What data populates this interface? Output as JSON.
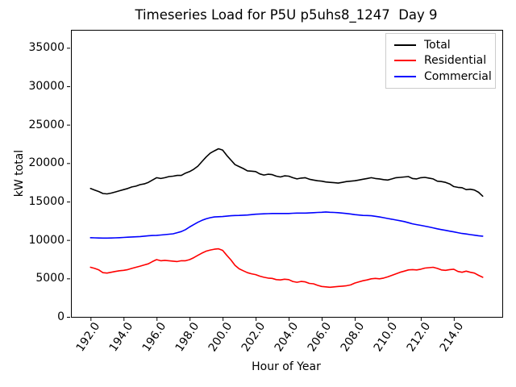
{
  "chart_data": {
    "type": "line",
    "title": "Timeseries Load for P5U p5uhs8_1247  Day 9",
    "xlabel": "Hour of Year",
    "ylabel": "kW total",
    "grid": false,
    "legend_position": "upper right",
    "legend_border_color": "#cccccc",
    "xlim": [
      190.8125,
      216.9375
    ],
    "ylim": [
      0,
      37340
    ],
    "x_ticks": [
      192,
      194,
      196,
      198,
      200,
      202,
      204,
      206,
      208,
      210,
      212,
      214
    ],
    "x_tick_labels": [
      "192.0",
      "194.0",
      "196.0",
      "198.0",
      "200.0",
      "202.0",
      "204.0",
      "206.0",
      "208.0",
      "210.0",
      "212.0",
      "214.0"
    ],
    "y_ticks": [
      0,
      5000,
      10000,
      15000,
      20000,
      25000,
      30000,
      35000
    ],
    "y_tick_labels": [
      "0",
      "5000",
      "10000",
      "15000",
      "20000",
      "25000",
      "30000",
      "35000"
    ],
    "x": [
      192,
      192.25,
      192.5,
      192.75,
      193,
      193.25,
      193.5,
      193.75,
      194,
      194.25,
      194.5,
      194.75,
      195,
      195.25,
      195.5,
      195.75,
      196,
      196.25,
      196.5,
      196.75,
      197,
      197.25,
      197.5,
      197.75,
      198,
      198.25,
      198.5,
      198.75,
      199,
      199.25,
      199.5,
      199.75,
      200,
      200.25,
      200.5,
      200.75,
      201,
      201.25,
      201.5,
      201.75,
      202,
      202.25,
      202.5,
      202.75,
      203,
      203.25,
      203.5,
      203.75,
      204,
      204.25,
      204.5,
      204.75,
      205,
      205.25,
      205.5,
      205.75,
      206,
      206.25,
      206.5,
      206.75,
      207,
      207.25,
      207.5,
      207.75,
      208,
      208.25,
      208.5,
      208.75,
      209,
      209.25,
      209.5,
      209.75,
      210,
      210.25,
      210.5,
      210.75,
      211,
      211.25,
      211.5,
      211.75,
      212,
      212.25,
      212.5,
      212.75,
      213,
      213.25,
      213.5,
      213.75,
      214,
      214.25,
      214.5,
      214.75,
      215,
      215.25,
      215.5,
      215.75
    ],
    "series": [
      {
        "name": "Total",
        "color": "#000000",
        "values": [
          16700,
          16500,
          16300,
          16050,
          16000,
          16100,
          16250,
          16400,
          16550,
          16700,
          16900,
          17000,
          17200,
          17300,
          17500,
          17800,
          18100,
          18000,
          18100,
          18250,
          18300,
          18400,
          18400,
          18700,
          18900,
          19200,
          19600,
          20200,
          20800,
          21300,
          21600,
          21870,
          21700,
          21000,
          20400,
          19800,
          19550,
          19300,
          19000,
          18950,
          18900,
          18600,
          18450,
          18550,
          18500,
          18300,
          18200,
          18350,
          18300,
          18100,
          17950,
          18050,
          18100,
          17900,
          17800,
          17700,
          17650,
          17550,
          17500,
          17450,
          17400,
          17500,
          17600,
          17650,
          17700,
          17800,
          17900,
          18000,
          18100,
          18000,
          17950,
          17850,
          17800,
          17950,
          18100,
          18150,
          18200,
          18250,
          18000,
          17950,
          18100,
          18150,
          18050,
          17950,
          17650,
          17600,
          17500,
          17300,
          16950,
          16850,
          16800,
          16550,
          16600,
          16500,
          16200,
          15700
        ]
      },
      {
        "name": "Residential",
        "color": "#ff0000",
        "values": [
          6450,
          6300,
          6100,
          5750,
          5700,
          5800,
          5900,
          6000,
          6050,
          6150,
          6300,
          6450,
          6600,
          6750,
          6900,
          7200,
          7450,
          7300,
          7350,
          7300,
          7250,
          7200,
          7300,
          7300,
          7450,
          7700,
          8000,
          8300,
          8550,
          8700,
          8800,
          8850,
          8650,
          8000,
          7400,
          6700,
          6250,
          6000,
          5750,
          5600,
          5500,
          5300,
          5150,
          5050,
          5000,
          4850,
          4800,
          4900,
          4850,
          4600,
          4500,
          4600,
          4550,
          4350,
          4300,
          4100,
          3950,
          3900,
          3850,
          3900,
          3950,
          4000,
          4050,
          4150,
          4400,
          4550,
          4700,
          4800,
          4950,
          5000,
          4950,
          5050,
          5200,
          5400,
          5600,
          5800,
          5950,
          6100,
          6150,
          6100,
          6200,
          6350,
          6400,
          6450,
          6300,
          6100,
          6050,
          6150,
          6200,
          5900,
          5800,
          5950,
          5800,
          5700,
          5400,
          5150
        ]
      },
      {
        "name": "Commercial",
        "color": "#0000ff",
        "values": [
          10300,
          10280,
          10260,
          10250,
          10250,
          10260,
          10280,
          10300,
          10330,
          10360,
          10390,
          10420,
          10450,
          10500,
          10550,
          10580,
          10600,
          10650,
          10700,
          10750,
          10800,
          10950,
          11100,
          11350,
          11700,
          12000,
          12300,
          12550,
          12750,
          12900,
          13000,
          13030,
          13050,
          13100,
          13150,
          13180,
          13200,
          13230,
          13250,
          13300,
          13350,
          13380,
          13400,
          13430,
          13450,
          13450,
          13450,
          13450,
          13450,
          13480,
          13500,
          13500,
          13500,
          13520,
          13550,
          13580,
          13600,
          13650,
          13600,
          13580,
          13550,
          13500,
          13450,
          13380,
          13300,
          13250,
          13200,
          13180,
          13150,
          13080,
          13000,
          12900,
          12800,
          12700,
          12600,
          12500,
          12400,
          12250,
          12100,
          12000,
          11900,
          11800,
          11700,
          11580,
          11450,
          11350,
          11250,
          11150,
          11050,
          10950,
          10850,
          10780,
          10700,
          10620,
          10550,
          10500
        ]
      }
    ]
  }
}
